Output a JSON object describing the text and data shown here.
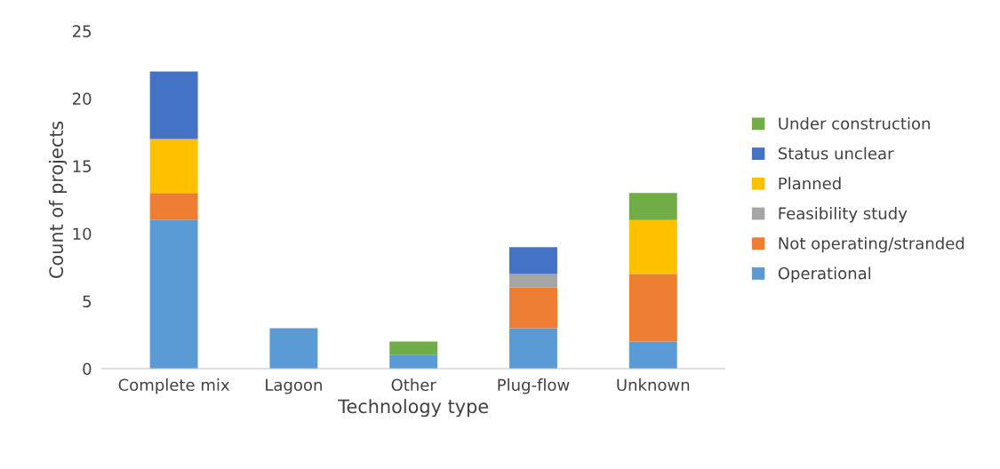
{
  "chart_data": {
    "type": "bar",
    "stacked": true,
    "xlabel": "Technology type",
    "ylabel": "Count of projects",
    "categories": [
      "Complete mix",
      "Lagoon",
      "Other",
      "Plug-flow",
      "Unknown"
    ],
    "series": [
      {
        "name": "Operational",
        "color": "#5b9bd5",
        "values": [
          11,
          3,
          1,
          3,
          2
        ]
      },
      {
        "name": "Not operating/stranded",
        "color": "#ed7d31",
        "values": [
          2,
          0,
          0,
          3,
          5
        ]
      },
      {
        "name": "Feasibility study",
        "color": "#a5a5a5",
        "values": [
          0,
          0,
          0,
          1,
          0
        ]
      },
      {
        "name": "Planned",
        "color": "#ffc000",
        "values": [
          4,
          0,
          0,
          0,
          4
        ]
      },
      {
        "name": "Status unclear",
        "color": "#4472c4",
        "values": [
          5,
          0,
          0,
          2,
          0
        ]
      },
      {
        "name": "Under construction",
        "color": "#70ad47",
        "values": [
          0,
          0,
          1,
          0,
          2
        ]
      }
    ],
    "ylim": [
      0,
      25
    ],
    "yticks": [
      0,
      5,
      10,
      15,
      20,
      25
    ],
    "grid": false,
    "legend": "right"
  }
}
